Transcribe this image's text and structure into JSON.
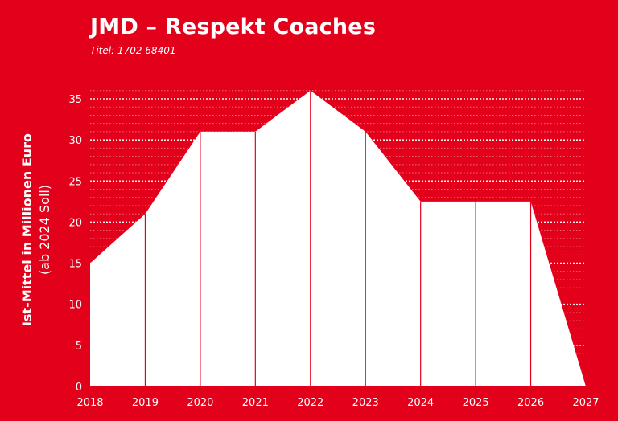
{
  "title": "JMD – Respekt Coaches",
  "subtitle": "Titel: 1702 68401",
  "chart_data": {
    "type": "area",
    "title": "JMD – Respekt Coaches",
    "subtitle": "Titel: 1702 68401",
    "ylabel_line1": "Ist-Mittel in Millionen Euro",
    "ylabel_line2": "(ab 2024 Soll)",
    "x": [
      "2018",
      "2019",
      "2020",
      "2021",
      "2022",
      "2023",
      "2024",
      "2025",
      "2026",
      "2027"
    ],
    "values": [
      15,
      21,
      31,
      31,
      36,
      31,
      22.5,
      22.5,
      22.5,
      0
    ],
    "ylim": [
      0,
      36
    ],
    "yticks": [
      0,
      5,
      10,
      15,
      20,
      25,
      30,
      35
    ],
    "grid": true,
    "colors": {
      "background": "#e3001b",
      "area": "#ffffff",
      "grid": "#ffffff",
      "divider": "#e3001b"
    }
  }
}
